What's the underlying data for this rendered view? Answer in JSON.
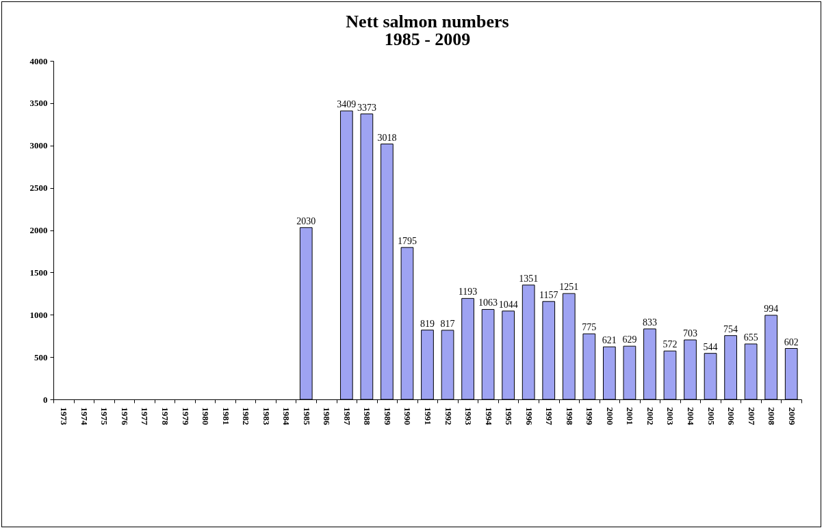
{
  "chart_data": {
    "type": "bar",
    "title": "Nett salmon numbers",
    "subtitle": "1985 - 2009",
    "categories": [
      "1973",
      "1974",
      "1975",
      "1976",
      "1977",
      "1978",
      "1979",
      "1980",
      "1981",
      "1982",
      "1983",
      "1984",
      "1985",
      "1986",
      "1987",
      "1988",
      "1989",
      "1990",
      "1991",
      "1992",
      "1993",
      "1994",
      "1995",
      "1996",
      "1997",
      "1998",
      "1999",
      "2000",
      "2001",
      "2002",
      "2003",
      "2004",
      "2005",
      "2006",
      "2007",
      "2008",
      "2009"
    ],
    "values": [
      null,
      null,
      null,
      null,
      null,
      null,
      null,
      null,
      null,
      null,
      null,
      null,
      2030,
      null,
      3409,
      3373,
      3018,
      1795,
      819,
      817,
      1193,
      1063,
      1044,
      1351,
      1157,
      1251,
      775,
      621,
      629,
      833,
      572,
      703,
      544,
      754,
      655,
      994,
      602
    ],
    "color": "#9ea3f2",
    "ylim": [
      0,
      4000
    ],
    "yticks": [
      0,
      500,
      1000,
      1500,
      2000,
      2500,
      3000,
      3500,
      4000
    ],
    "grid": false,
    "data_labels": true
  }
}
